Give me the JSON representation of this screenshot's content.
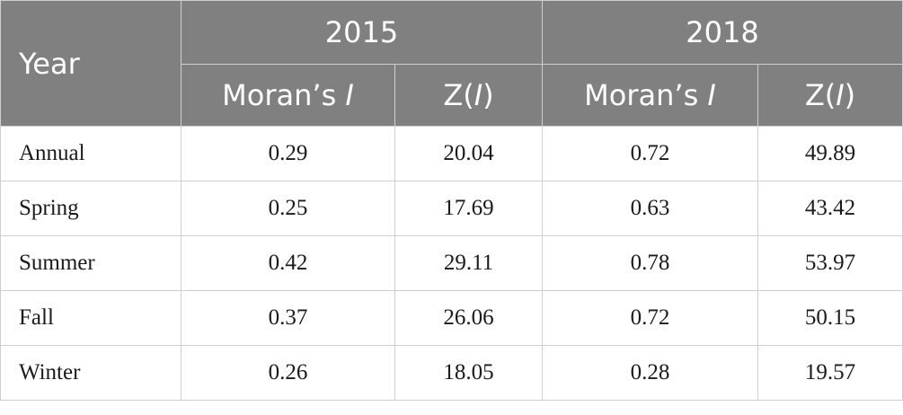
{
  "header": {
    "year_label": "Year",
    "groups": [
      "2015",
      "2018"
    ],
    "subcols": [
      {
        "prefix": "Moran’s ",
        "italic": "I",
        "suffix": ""
      },
      {
        "prefix": "Z(",
        "italic": "I",
        "suffix": ")"
      }
    ]
  },
  "rows": [
    {
      "label": "Annual",
      "values": [
        "0.29",
        "20.04",
        "0.72",
        "49.89"
      ]
    },
    {
      "label": "Spring",
      "values": [
        "0.25",
        "17.69",
        "0.63",
        "43.42"
      ]
    },
    {
      "label": "Summer",
      "values": [
        "0.42",
        "29.11",
        "0.78",
        "53.97"
      ]
    },
    {
      "label": "Fall",
      "values": [
        "0.37",
        "26.06",
        "0.72",
        "50.15"
      ]
    },
    {
      "label": "Winter",
      "values": [
        "0.26",
        "18.05",
        "0.28",
        "19.57"
      ]
    }
  ]
}
